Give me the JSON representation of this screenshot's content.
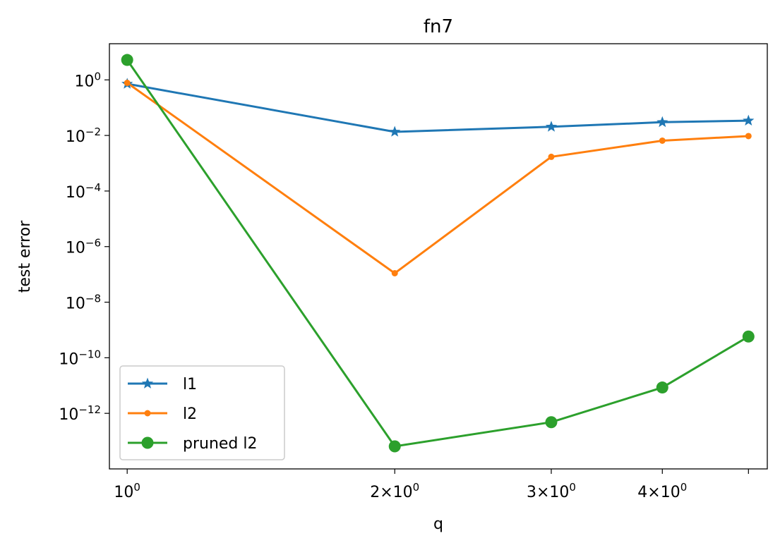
{
  "chart_data": {
    "type": "line",
    "title": "fn7",
    "xlabel": "q",
    "ylabel": "test error",
    "xscale": "log",
    "yscale": "log",
    "xlim": [
      0.955,
      5.25
    ],
    "ylim": [
      1e-14,
      20.0
    ],
    "x": [
      1,
      2,
      3,
      4,
      5
    ],
    "xticks": [
      {
        "value": 1,
        "base": "10",
        "exp": "0"
      },
      {
        "value": 2,
        "base": "2×10",
        "exp": "0"
      },
      {
        "value": 3,
        "base": "3×10",
        "exp": "0"
      },
      {
        "value": 4,
        "base": "4×10",
        "exp": "0"
      },
      {
        "value": 5,
        "base": "",
        "exp": ""
      }
    ],
    "yticks": [
      {
        "value": 1,
        "base": "10",
        "exp": "0"
      },
      {
        "value": 0.01,
        "base": "10",
        "exp": "−2"
      },
      {
        "value": 0.0001,
        "base": "10",
        "exp": "−4"
      },
      {
        "value": 1e-06,
        "base": "10",
        "exp": "−6"
      },
      {
        "value": 1e-08,
        "base": "10",
        "exp": "−8"
      },
      {
        "value": 1e-10,
        "base": "10",
        "exp": "−10"
      },
      {
        "value": 1e-12,
        "base": "10",
        "exp": "−12"
      }
    ],
    "series": [
      {
        "name": "l1",
        "color": "#1f77b4",
        "marker": "star",
        "values": [
          0.72,
          0.0135,
          0.0205,
          0.03,
          0.034
        ]
      },
      {
        "name": "l2",
        "color": "#ff7f0e",
        "marker": "small-dot",
        "values": [
          0.78,
          1.1e-07,
          0.0017,
          0.0065,
          0.0095
        ]
      },
      {
        "name": "pruned l2",
        "color": "#2ca02c",
        "marker": "dot",
        "values": [
          5.2,
          6.5e-14,
          4.8e-13,
          8.5e-12,
          5.8e-10
        ]
      }
    ],
    "legend": "lower-left",
    "grid": false
  }
}
